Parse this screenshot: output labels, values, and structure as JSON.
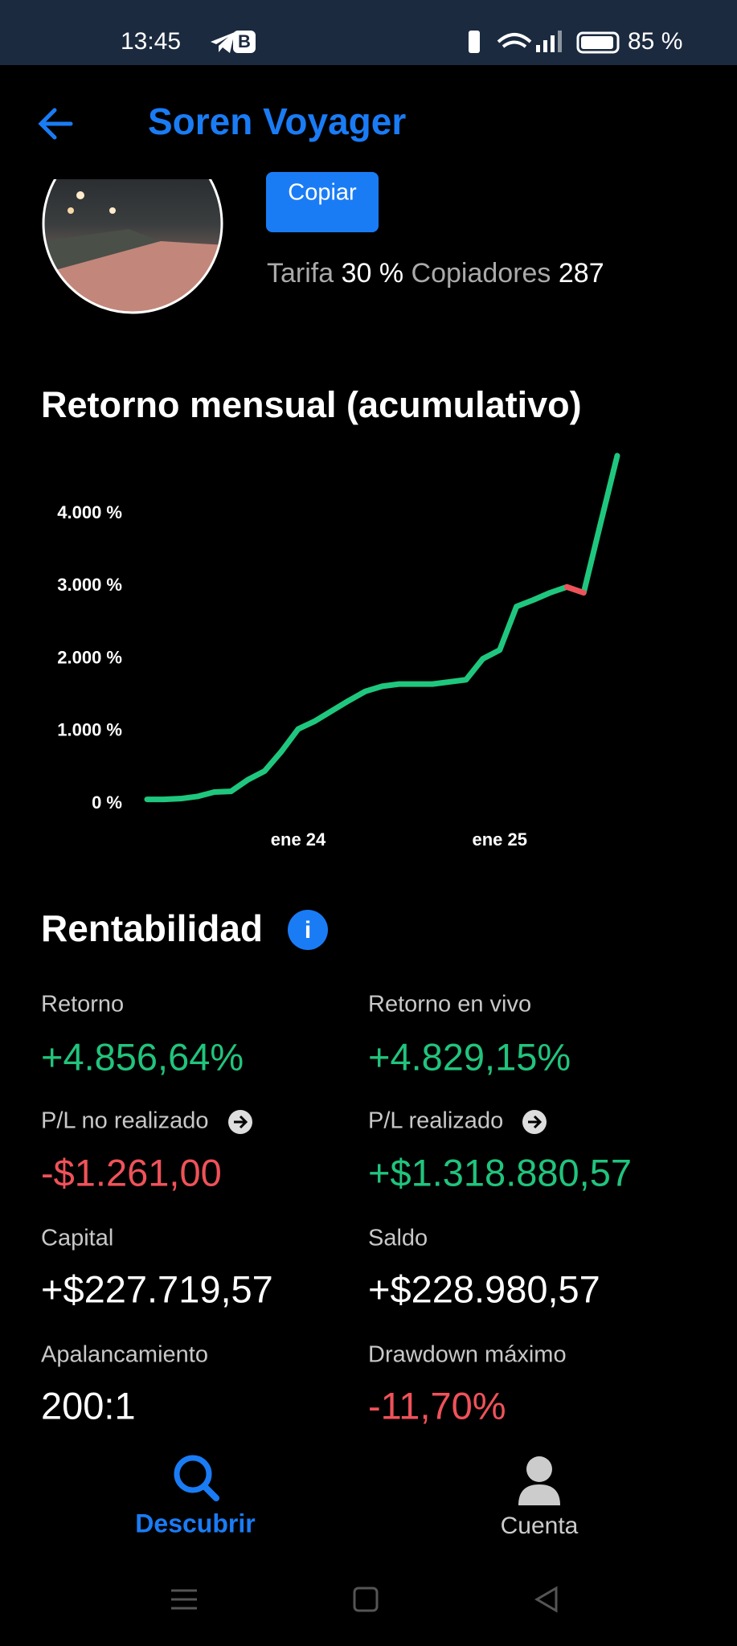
{
  "status_bar": {
    "time": "13:45",
    "battery": "85 %"
  },
  "header": {
    "title": "Soren Voyager"
  },
  "profile": {
    "button": "Copiar",
    "fee_label": "Tarifa",
    "fee": "30 %",
    "copiers_label": "Copiadores",
    "copiers": "287"
  },
  "chart_data": {
    "type": "line",
    "title": "Retorno mensual (acumulativo)",
    "categories": [
      null,
      null,
      null,
      null,
      null,
      null,
      null,
      null,
      null,
      "ene 24",
      null,
      null,
      null,
      null,
      null,
      null,
      null,
      null,
      null,
      null,
      null,
      "ene 25",
      null,
      null,
      null,
      null,
      null,
      null,
      null
    ],
    "values": [
      60,
      60,
      70,
      100,
      160,
      170,
      330,
      450,
      720,
      1030,
      1140,
      1280,
      1420,
      1550,
      1620,
      1650,
      1650,
      1650,
      1680,
      1710,
      2000,
      2120,
      2720,
      2810,
      2910,
      2990,
      2910,
      3860,
      4800
    ],
    "color": "#1fc77e",
    "down_color": "#f0525a",
    "ylim": [
      -100,
      4900
    ],
    "yticks": [
      {
        "value": 0,
        "label": "0 %"
      },
      {
        "value": 1000,
        "label": "1.000 %"
      },
      {
        "value": 2000,
        "label": "2.000 %"
      },
      {
        "value": 3000,
        "label": "3.000 %"
      },
      {
        "value": 4000,
        "label": "4.000 %"
      }
    ]
  },
  "profitability": {
    "title": "Rentabilidad",
    "stats": [
      {
        "label": "Retorno",
        "value": "+4.856,64%"
      },
      {
        "label": "Retorno en vivo",
        "value": "+4.829,15%"
      },
      {
        "label": "P/L no realizado",
        "value": "-$1.261,00"
      },
      {
        "label": "P/L realizado",
        "value": "+$1.318.880,57"
      },
      {
        "label": "Capital",
        "value": "+$227.719,57"
      },
      {
        "label": "Saldo",
        "value": "+$228.980,57"
      },
      {
        "label": "Apalancamiento",
        "value": "200:1"
      },
      {
        "label": "Drawdown máximo",
        "value": "-11,70%"
      }
    ]
  },
  "nav": {
    "discover": "Descubrir",
    "account": "Cuenta"
  }
}
